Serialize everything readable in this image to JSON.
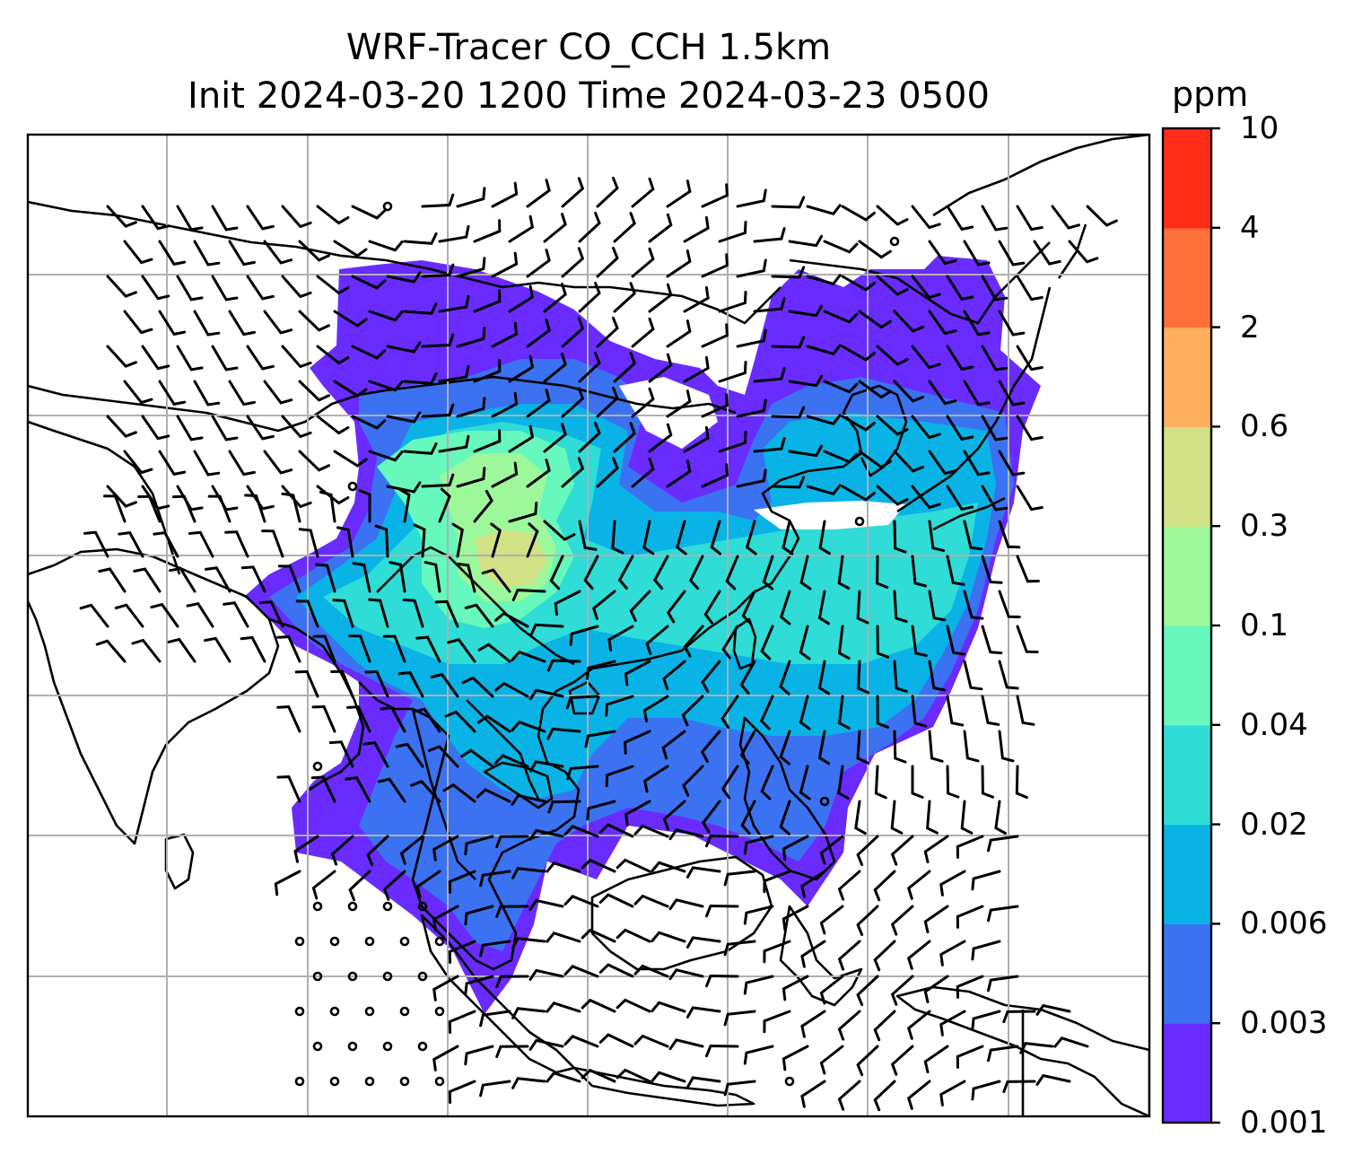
{
  "title_line1": "WRF-Tracer CO_CCH 1.5km",
  "title_line2": "Init 2024-03-20 1200 Time 2024-03-23 0500",
  "colorbar": {
    "unit": "ppm",
    "levels": [
      {
        "label": "0.001",
        "color": "#6a2bff"
      },
      {
        "label": "0.003",
        "color": "#3a72f2"
      },
      {
        "label": "0.006",
        "color": "#09b3e6"
      },
      {
        "label": "0.02",
        "color": "#2fdcd6"
      },
      {
        "label": "0.04",
        "color": "#66f8bc"
      },
      {
        "label": "0.1",
        "color": "#9cf89a"
      },
      {
        "label": "0.3",
        "color": "#d2e086"
      },
      {
        "label": "0.6",
        "color": "#ffb05e"
      },
      {
        "label": "2",
        "color": "#ff703a"
      },
      {
        "label": "4",
        "color": "#ff2c18"
      },
      {
        "label": "10",
        "color": null
      }
    ]
  }
}
